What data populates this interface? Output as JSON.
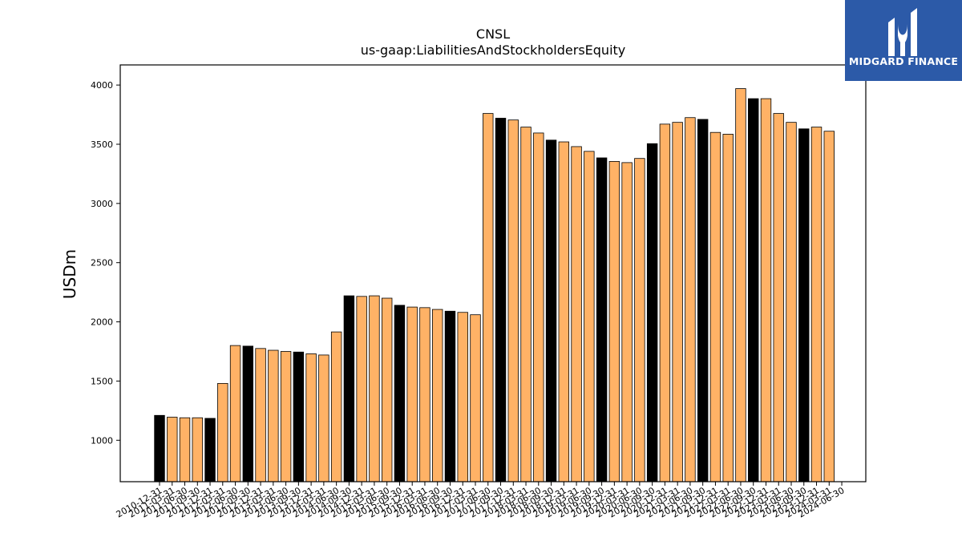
{
  "brand": {
    "name": "MIDGARD FINANCE",
    "logo_icon": "midgard-logo-icon"
  },
  "chart_data": {
    "type": "bar",
    "title": "CNSL",
    "subtitle": "us-gaap:LiabilitiesAndStockholdersEquity",
    "ylabel": "USDm",
    "xlabel": "",
    "ylim": [
      650,
      4170
    ],
    "yticks": [
      1000,
      1500,
      2000,
      2500,
      3000,
      3500,
      4000
    ],
    "grid": false,
    "colors": {
      "annual": "#000000",
      "quarter": "#ffb266",
      "edge": "#000000"
    },
    "categories": [
      "2010-12-31",
      "2011-03-31",
      "2011-06-30",
      "2011-09-30",
      "2011-12-31",
      "2012-03-31",
      "2012-06-30",
      "2012-09-30",
      "2012-12-31",
      "2013-03-31",
      "2013-06-30",
      "2013-09-30",
      "2013-12-31",
      "2014-03-31",
      "2014-06-30",
      "2014-09-30",
      "2014-12-31",
      "2015-03-31",
      "2015-06-30",
      "2015-09-30",
      "2015-12-31",
      "2016-03-31",
      "2016-06-30",
      "2016-09-30",
      "2016-12-31",
      "2017-03-31",
      "2017-06-30",
      "2017-09-30",
      "2017-12-31",
      "2018-03-31",
      "2018-06-30",
      "2018-09-30",
      "2018-12-31",
      "2019-03-31",
      "2019-06-30",
      "2019-09-30",
      "2019-12-31",
      "2020-03-31",
      "2020-06-30",
      "2020-09-30",
      "2020-12-31",
      "2021-03-31",
      "2021-06-30",
      "2021-09-30",
      "2021-12-31",
      "2022-03-31",
      "2022-06-30",
      "2022-09-30",
      "2022-12-31",
      "2023-03-31",
      "2023-06-30",
      "2023-09-30",
      "2023-12-31",
      "2024-03-31",
      "2024-06-30"
    ],
    "values": [
      1210,
      1195,
      1190,
      1190,
      1185,
      1480,
      1800,
      1795,
      1775,
      1760,
      1750,
      1745,
      1730,
      1720,
      1915,
      2220,
      2215,
      2220,
      2200,
      2140,
      2125,
      2120,
      2105,
      2090,
      2080,
      2060,
      3760,
      3720,
      3705,
      3645,
      3595,
      3535,
      3520,
      3480,
      3440,
      3385,
      3355,
      3345,
      3380,
      3505,
      3670,
      3685,
      3725,
      3710,
      3600,
      3585,
      3970,
      3885,
      3885,
      3760,
      3685,
      3630,
      3645,
      3610,
      null
    ],
    "annual_flags": [
      true,
      false,
      false,
      false,
      true,
      false,
      false,
      true,
      false,
      false,
      false,
      true,
      false,
      false,
      false,
      true,
      false,
      false,
      false,
      true,
      false,
      false,
      false,
      true,
      false,
      false,
      false,
      true,
      false,
      false,
      false,
      true,
      false,
      false,
      false,
      true,
      false,
      false,
      false,
      true,
      false,
      false,
      false,
      true,
      false,
      false,
      false,
      true,
      false,
      false,
      false,
      true,
      false,
      false,
      false
    ]
  }
}
